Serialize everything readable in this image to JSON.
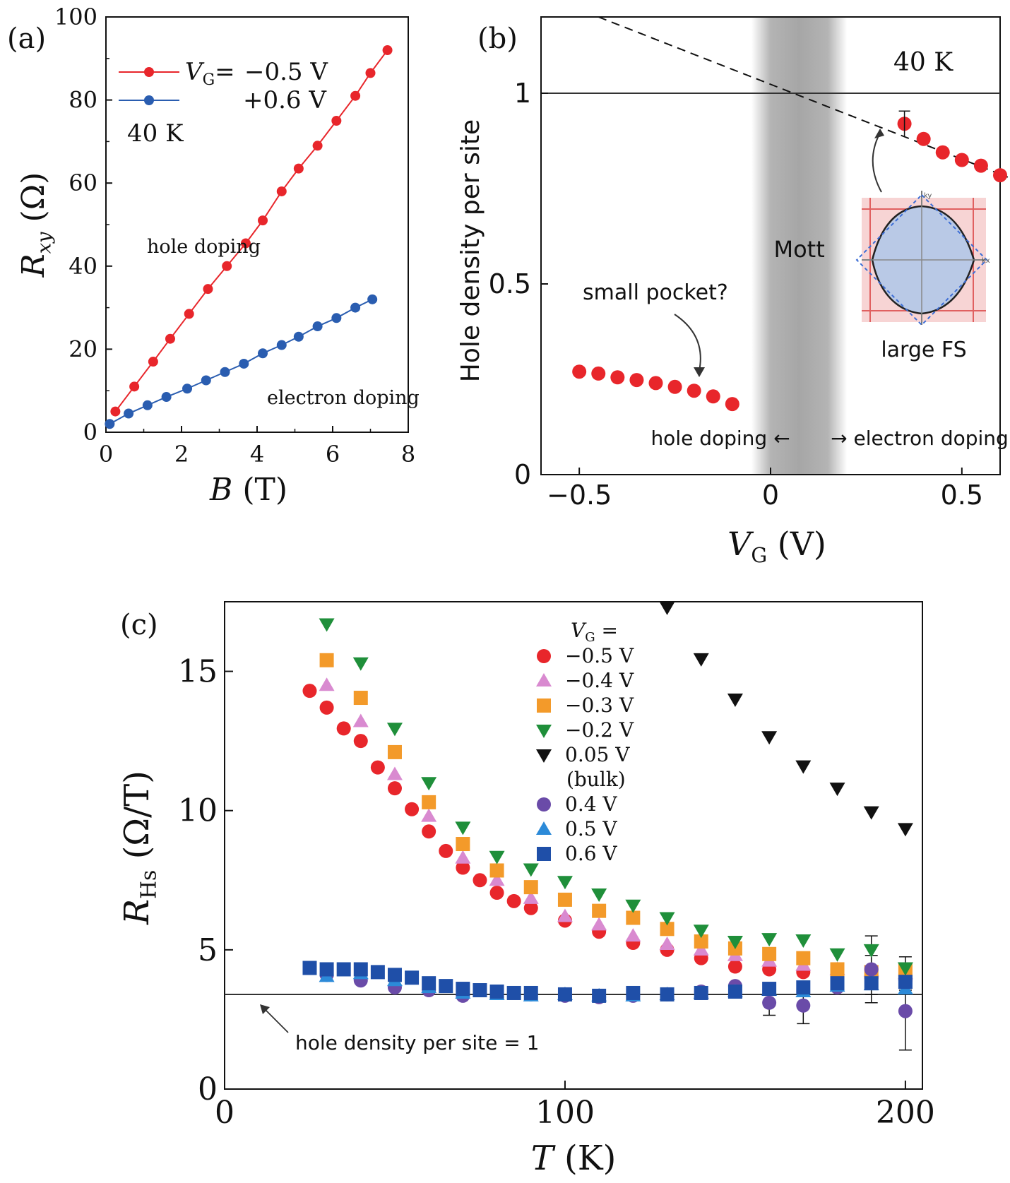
{
  "chart_data": [
    {
      "panel": "(a)",
      "type": "line",
      "title": "",
      "xlabel": "B (T)",
      "ylabel": "Rxy (Ω)",
      "xlabel_parts": {
        "var": "B",
        "unit": "(T)"
      },
      "ylabel_parts": {
        "var": "R",
        "sub": "xy",
        "unit": "(Ω)"
      },
      "xlim": [
        0,
        8
      ],
      "ylim": [
        0,
        100
      ],
      "xticks": [
        0,
        2,
        4,
        6,
        8
      ],
      "yticks": [
        0,
        20,
        40,
        60,
        80,
        100
      ],
      "temperature_label": "40 K",
      "annotations": [
        "hole doping",
        "electron doping"
      ],
      "legend": {
        "prefix_var": "V",
        "prefix_sub": "G",
        "eq": "="
      },
      "series": [
        {
          "name": "−0.5 V",
          "color": "#e8262b",
          "x": [
            0.25,
            0.75,
            1.25,
            1.7,
            2.2,
            2.7,
            3.2,
            3.7,
            4.15,
            4.65,
            5.1,
            5.6,
            6.1,
            6.6,
            7.0,
            7.45
          ],
          "y": [
            5,
            11,
            17,
            22.5,
            28.5,
            34.5,
            40,
            45.5,
            51,
            58,
            63.5,
            69,
            75,
            81,
            86.5,
            92
          ]
        },
        {
          "name": "+0.6 V",
          "color": "#2a5db0",
          "x": [
            0.1,
            0.6,
            1.1,
            1.6,
            2.15,
            2.65,
            3.15,
            3.65,
            4.15,
            4.65,
            5.1,
            5.6,
            6.1,
            6.6,
            7.05
          ],
          "y": [
            2,
            4.5,
            6.5,
            8.5,
            10.5,
            12.5,
            14.5,
            16.5,
            19,
            21,
            23,
            25.5,
            27.5,
            30,
            32
          ]
        }
      ]
    },
    {
      "panel": "(b)",
      "type": "scatter",
      "title": "",
      "xlabel": "VG (V)",
      "ylabel": "Hole density per site",
      "xlabel_parts": {
        "var": "V",
        "sub": "G",
        "unit": "(V)"
      },
      "xlim": [
        -0.6,
        0.6
      ],
      "ylim": [
        0,
        1.2
      ],
      "xticks": [
        -0.5,
        0,
        0.5
      ],
      "xtick_labels": [
        "−0.5",
        "0",
        "0.5"
      ],
      "yticks": [
        0,
        0.5,
        1
      ],
      "ytick_labels": [
        "0",
        "0.5",
        "1"
      ],
      "temperature_label": "40 K",
      "mott_label": "Mott",
      "mott_band": [
        -0.05,
        0.2
      ],
      "reference_line_y": 1,
      "dashed_line": {
        "x": [
          -0.45,
          0.62
        ],
        "y": [
          1.2,
          0.78
        ]
      },
      "annotations": {
        "small_pocket": "small pocket?",
        "large_fs": "large FS",
        "hole_doping": "hole doping ←",
        "electron_doping": "→ electron doping",
        "kx": "kx",
        "ky": "ky"
      },
      "series": [
        {
          "name": "hole doping",
          "color": "#e8262b",
          "x": [
            -0.5,
            -0.45,
            -0.4,
            -0.35,
            -0.3,
            -0.25,
            -0.2,
            -0.15,
            -0.1
          ],
          "y": [
            0.27,
            0.265,
            0.255,
            0.248,
            0.24,
            0.23,
            0.22,
            0.205,
            0.185
          ]
        },
        {
          "name": "electron doping",
          "color": "#e8262b",
          "x": [
            0.35,
            0.4,
            0.45,
            0.5,
            0.55,
            0.6
          ],
          "y": [
            0.92,
            0.88,
            0.845,
            0.825,
            0.81,
            0.785
          ]
        }
      ]
    },
    {
      "panel": "(c)",
      "type": "scatter",
      "title": "",
      "xlabel": "T (K)",
      "ylabel": "RHs (Ω/T)",
      "xlabel_parts": {
        "var": "T",
        "unit": "(K)"
      },
      "ylabel_parts": {
        "var": "R",
        "sub": "Hs",
        "unit": "(Ω/T)"
      },
      "xlim": [
        0,
        205
      ],
      "ylim": [
        0,
        17.5
      ],
      "xticks": [
        0,
        100,
        200
      ],
      "yticks": [
        0,
        5,
        10,
        15
      ],
      "reference_line_y": 3.4,
      "reference_label": "hole density per site = 1",
      "legend_title": {
        "var": "V",
        "sub": "G",
        "eq": "="
      },
      "legend_note": "(bulk)",
      "series": [
        {
          "name": "−0.5 V",
          "marker": "circle",
          "color": "#e8262b",
          "x": [
            25,
            30,
            35,
            40,
            45,
            50,
            55,
            60,
            65,
            70,
            75,
            80,
            85,
            90,
            100,
            110,
            120,
            130,
            140,
            150,
            160,
            170,
            180,
            190,
            200
          ],
          "y": [
            14.3,
            13.7,
            12.95,
            12.5,
            11.55,
            10.8,
            10.05,
            9.25,
            8.55,
            7.95,
            7.5,
            7.05,
            6.75,
            6.5,
            6.05,
            5.65,
            5.25,
            5.0,
            4.7,
            4.4,
            4.3,
            4.2,
            4.1,
            4.0,
            3.9
          ]
        },
        {
          "name": "−0.4 V",
          "marker": "triangle-up",
          "color": "#d98ad0",
          "x": [
            30,
            40,
            50,
            60,
            70,
            80,
            90,
            100,
            110,
            120,
            130,
            140,
            150,
            160,
            170,
            180,
            190,
            200
          ],
          "y": [
            14.5,
            13.2,
            11.3,
            9.8,
            8.3,
            7.5,
            6.85,
            6.2,
            5.9,
            5.5,
            5.2,
            5.0,
            4.8,
            4.6,
            4.45,
            4.3,
            4.25,
            4.15
          ]
        },
        {
          "name": "−0.3 V",
          "marker": "square",
          "color": "#f39a2a",
          "x": [
            30,
            40,
            50,
            60,
            70,
            80,
            90,
            100,
            110,
            120,
            130,
            140,
            150,
            160,
            170,
            180,
            190,
            200
          ],
          "y": [
            15.4,
            14.05,
            12.1,
            10.3,
            8.8,
            7.85,
            7.25,
            6.8,
            6.4,
            6.15,
            5.75,
            5.3,
            5.05,
            4.85,
            4.7,
            4.3,
            4.2,
            4.25
          ]
        },
        {
          "name": "−0.2 V",
          "marker": "triangle-down",
          "color": "#1f8f3a",
          "x": [
            30,
            40,
            50,
            60,
            70,
            80,
            90,
            100,
            110,
            120,
            130,
            140,
            150,
            160,
            170,
            180,
            190,
            200
          ],
          "y": [
            16.7,
            15.3,
            12.95,
            11.0,
            9.4,
            8.35,
            7.9,
            7.45,
            7.0,
            6.6,
            6.15,
            5.7,
            5.3,
            5.4,
            5.35,
            4.85,
            5.0,
            4.35
          ]
        },
        {
          "name": "0.05 V",
          "marker": "triangle-down",
          "color": "#111111",
          "x": [
            130,
            140,
            150,
            160,
            170,
            180,
            190,
            200
          ],
          "y": [
            17.3,
            15.45,
            14.0,
            12.65,
            11.6,
            10.8,
            9.95,
            9.35
          ]
        },
        {
          "name": "0.4 V",
          "marker": "circle",
          "color": "#6a4ba8",
          "x": [
            30,
            40,
            50,
            60,
            70,
            80,
            90,
            100,
            110,
            120,
            130,
            140,
            150,
            160,
            170,
            180,
            190,
            200
          ],
          "y": [
            4.1,
            3.9,
            3.65,
            3.55,
            3.35,
            3.45,
            3.4,
            3.35,
            3.3,
            3.35,
            3.4,
            3.5,
            3.7,
            3.1,
            3.0,
            3.65,
            4.3,
            2.8
          ]
        },
        {
          "name": "0.5 V",
          "marker": "triangle-up",
          "color": "#2c8ad8",
          "x": [
            30,
            40,
            50,
            60,
            70,
            80,
            90,
            100,
            110,
            120,
            130,
            140,
            150,
            160,
            170,
            180,
            190,
            200
          ],
          "y": [
            4.05,
            4.15,
            3.9,
            3.65,
            3.45,
            3.4,
            3.35,
            3.4,
            3.35,
            3.35,
            3.4,
            3.45,
            3.5,
            3.55,
            3.5,
            3.7,
            3.75,
            3.6
          ]
        },
        {
          "name": "0.6 V",
          "marker": "square",
          "color": "#1f4fa8",
          "x": [
            25,
            30,
            35,
            40,
            45,
            50,
            55,
            60,
            65,
            70,
            75,
            80,
            85,
            90,
            100,
            110,
            120,
            130,
            140,
            150,
            160,
            170,
            180,
            190,
            200
          ],
          "y": [
            4.35,
            4.3,
            4.3,
            4.3,
            4.2,
            4.1,
            4.0,
            3.8,
            3.7,
            3.6,
            3.55,
            3.5,
            3.45,
            3.45,
            3.4,
            3.35,
            3.45,
            3.4,
            3.45,
            3.5,
            3.6,
            3.65,
            3.8,
            3.8,
            3.85
          ]
        }
      ]
    }
  ]
}
